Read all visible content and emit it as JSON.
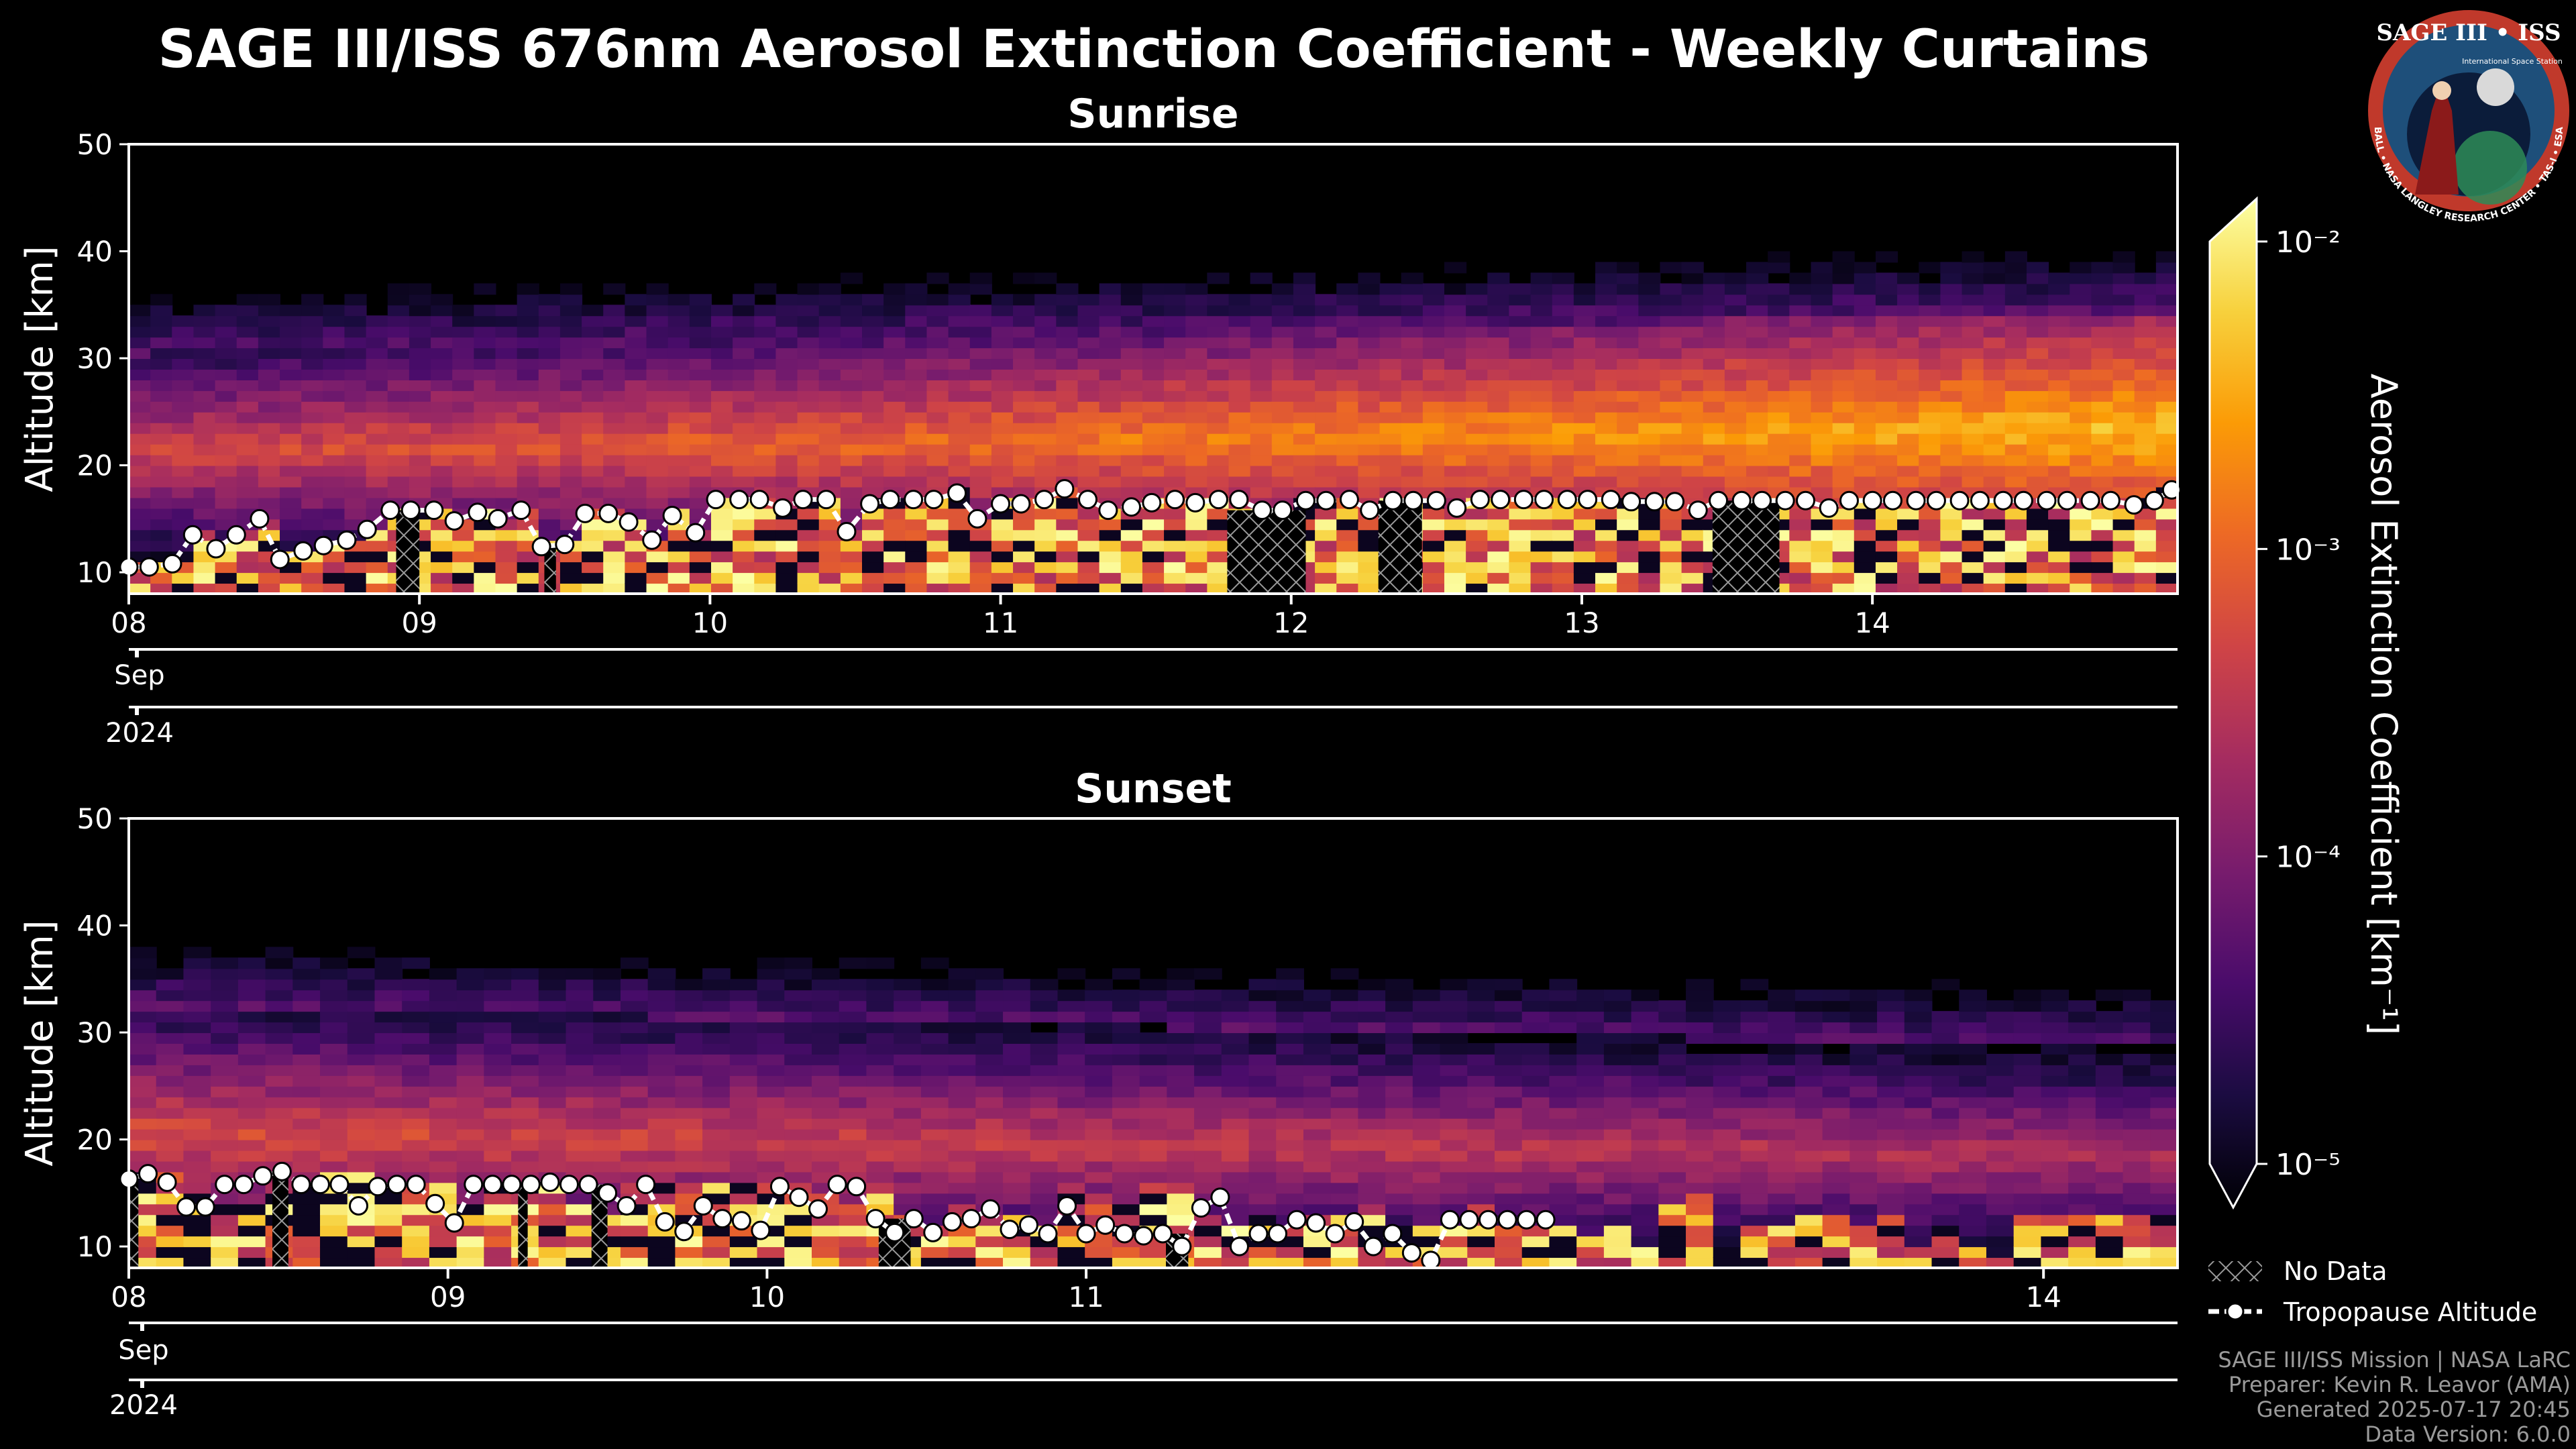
{
  "chart_data": [
    {
      "type": "heatmap",
      "title": "SAGE III/ISS 676nm Aerosol Extinction Coefficient - Weekly Curtains",
      "subtitle": "Sunrise",
      "ylabel": "Altitude [km]",
      "ylim": [
        8,
        50
      ],
      "yticks": [
        10,
        20,
        30,
        40,
        50
      ],
      "xlim": [
        8.0,
        15.05
      ],
      "xticks": [
        {
          "value": 8.0,
          "label": "08"
        },
        {
          "value": 9.0,
          "label": "09"
        },
        {
          "value": 10.0,
          "label": "10"
        },
        {
          "value": 11.0,
          "label": "11"
        },
        {
          "value": 12.0,
          "label": "12"
        },
        {
          "value": 13.0,
          "label": "13"
        },
        {
          "value": 14.0,
          "label": "14"
        }
      ],
      "month_label": "Sep",
      "year_label": "2024",
      "tropopause": {
        "x": [
          8.0,
          8.07,
          8.15,
          8.22,
          8.3,
          8.37,
          8.45,
          8.52,
          8.6,
          8.67,
          8.75,
          8.82,
          8.9,
          8.97,
          9.05,
          9.12,
          9.2,
          9.27,
          9.35,
          9.42,
          9.5,
          9.57,
          9.65,
          9.72,
          9.8,
          9.87,
          9.95,
          10.02,
          10.1,
          10.17,
          10.25,
          10.32,
          10.4,
          10.47,
          10.55,
          10.62,
          10.7,
          10.77,
          10.85,
          10.92,
          11.0,
          11.07,
          11.15,
          11.22,
          11.3,
          11.37,
          11.45,
          11.52,
          11.6,
          11.67,
          11.75,
          11.82,
          11.9,
          11.97,
          12.05,
          12.12,
          12.2,
          12.27,
          12.35,
          12.42,
          12.5,
          12.57,
          12.65,
          12.72,
          12.8,
          12.87,
          12.95,
          13.02,
          13.1,
          13.17,
          13.25,
          13.32,
          13.4,
          13.47,
          13.55,
          13.62,
          13.7,
          13.77,
          13.85,
          13.92,
          14.0,
          14.07,
          14.15,
          14.22,
          14.3,
          14.37,
          14.45,
          14.52,
          14.6,
          14.67,
          14.75,
          14.82,
          14.9,
          14.97,
          15.03
        ],
        "y": [
          10.5,
          10.5,
          10.8,
          13.5,
          12.2,
          13.5,
          15.0,
          11.2,
          12.0,
          12.5,
          13.0,
          14.0,
          15.8,
          15.8,
          15.8,
          14.8,
          15.6,
          15.0,
          15.8,
          12.4,
          12.6,
          15.5,
          15.5,
          14.7,
          13.0,
          15.3,
          13.7,
          16.8,
          16.8,
          16.8,
          16.0,
          16.8,
          16.8,
          13.8,
          16.4,
          16.8,
          16.8,
          16.8,
          17.4,
          15.0,
          16.4,
          16.4,
          16.8,
          17.8,
          16.8,
          15.8,
          16.1,
          16.5,
          16.8,
          16.5,
          16.8,
          16.8,
          15.8,
          15.8,
          16.7,
          16.7,
          16.8,
          15.8,
          16.7,
          16.7,
          16.7,
          16.0,
          16.8,
          16.8,
          16.8,
          16.8,
          16.8,
          16.8,
          16.8,
          16.6,
          16.6,
          16.6,
          15.8,
          16.7,
          16.7,
          16.7,
          16.7,
          16.7,
          16.0,
          16.7,
          16.7,
          16.7,
          16.7,
          16.7,
          16.7,
          16.7,
          16.7,
          16.7,
          16.7,
          16.7,
          16.7,
          16.7,
          16.3,
          16.7,
          17.7
        ]
      },
      "no_data_spans": [
        [
          8.92,
          9.0
        ],
        [
          9.43,
          9.47
        ],
        [
          11.78,
          12.05
        ],
        [
          12.3,
          12.45
        ],
        [
          13.45,
          13.68
        ]
      ]
    },
    {
      "type": "heatmap",
      "subtitle": "Sunset",
      "ylabel": "Altitude [km]",
      "ylim": [
        8,
        50
      ],
      "yticks": [
        10,
        20,
        30,
        40,
        50
      ],
      "xlim": [
        8.0,
        14.42
      ],
      "xticks": [
        {
          "value": 8.0,
          "label": "08"
        },
        {
          "value": 9.0,
          "label": "09"
        },
        {
          "value": 10.0,
          "label": "10"
        },
        {
          "value": 11.0,
          "label": "11"
        },
        {
          "value": 14.0,
          "label": "14"
        }
      ],
      "month_label": "Sep",
      "year_label": "2024",
      "tropopause": {
        "x": [
          8.0,
          8.06,
          8.12,
          8.18,
          8.24,
          8.3,
          8.36,
          8.42,
          8.48,
          8.54,
          8.6,
          8.66,
          8.72,
          8.78,
          8.84,
          8.9,
          8.96,
          9.02,
          9.08,
          9.14,
          9.2,
          9.26,
          9.32,
          9.38,
          9.44,
          9.5,
          9.56,
          9.62,
          9.68,
          9.74,
          9.8,
          9.86,
          9.92,
          9.98,
          10.04,
          10.1,
          10.16,
          10.22,
          10.28,
          10.34,
          10.4,
          10.46,
          10.52,
          10.58,
          10.64,
          10.7,
          10.76,
          10.82,
          10.88,
          10.94,
          11.0,
          11.06,
          11.12,
          11.18,
          11.24,
          11.3,
          11.36,
          11.42,
          11.48,
          11.54,
          11.6,
          11.66,
          11.72,
          11.78,
          11.84,
          11.9,
          11.96,
          12.02,
          12.08,
          12.14,
          12.2,
          12.26,
          12.32,
          12.38,
          12.44
        ],
        "y": [
          16.3,
          16.8,
          16.0,
          13.7,
          13.7,
          15.8,
          15.8,
          16.6,
          17.0,
          15.8,
          15.8,
          15.8,
          13.8,
          15.6,
          15.8,
          15.8,
          14.0,
          12.2,
          15.8,
          15.8,
          15.8,
          15.8,
          16.0,
          15.8,
          15.8,
          15.0,
          13.8,
          15.8,
          12.3,
          11.4,
          13.8,
          12.6,
          12.4,
          11.5,
          15.6,
          14.6,
          13.5,
          15.8,
          15.6,
          12.6,
          11.3,
          12.6,
          11.3,
          12.3,
          12.6,
          13.5,
          11.6,
          12.0,
          11.2,
          13.8,
          11.2,
          12.0,
          11.2,
          11.0,
          11.2,
          10.0,
          13.6,
          14.6,
          10.0,
          11.2,
          11.2,
          12.5,
          12.2,
          11.2,
          12.3,
          10.0,
          11.2,
          9.4,
          8.7,
          12.5,
          12.5,
          12.5,
          12.5,
          12.5,
          12.5
        ]
      },
      "no_data_spans": [
        [
          8.0,
          8.03
        ],
        [
          8.45,
          8.5
        ],
        [
          9.22,
          9.25
        ],
        [
          9.45,
          9.5
        ],
        [
          10.35,
          10.45
        ],
        [
          11.25,
          11.32
        ]
      ]
    }
  ],
  "colorbar": {
    "label": "Aerosol Extinction Coefficient [km⁻¹]",
    "scale": "log",
    "range": [
      1e-05,
      0.01
    ],
    "ticks": [
      {
        "value": 0.01,
        "label": "10⁻²"
      },
      {
        "value": 0.001,
        "label": "10⁻³"
      },
      {
        "value": 0.0001,
        "label": "10⁻⁴"
      },
      {
        "value": 1e-05,
        "label": "10⁻⁵"
      }
    ],
    "colormap": [
      "#000004",
      "#1b0c41",
      "#4a0c6b",
      "#781c6d",
      "#a52c60",
      "#cf4446",
      "#ed6925",
      "#fb9b06",
      "#f7d13d",
      "#fcffa4"
    ]
  },
  "legend": {
    "no_data_label": "No Data",
    "tropopause_label": "Tropopause Altitude"
  },
  "logo": {
    "text_top": "SAGE III • ISS",
    "ring_text": "BALL • NASA LANGLEY RESEARCH CENTER • TAS-I • ESA",
    "side_text": "International Space Station",
    "accent_color": "#1e4f7a",
    "ring_color": "#c0392b"
  },
  "footer": {
    "line1": "SAGE III/ISS Mission | NASA LaRC",
    "line2": "Preparer: Kevin R. Leavor (AMA)",
    "line3": "Generated 2025-07-17 20:45",
    "line4": "Data Version: 6.0.0"
  }
}
